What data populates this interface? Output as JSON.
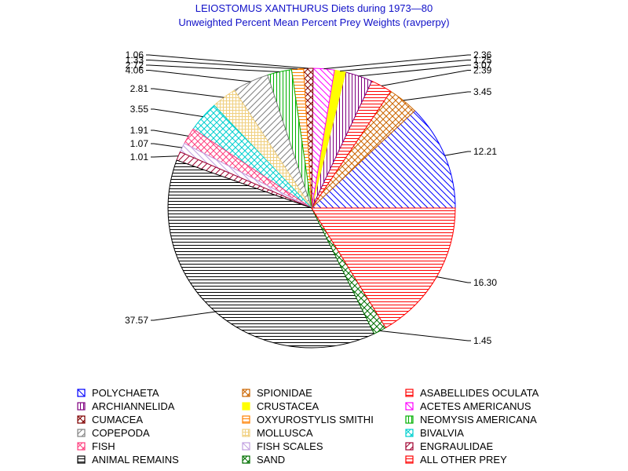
{
  "chart_data": {
    "type": "pie",
    "title": "LEIOSTOMUS XANTHURUS Diets during 1973—80",
    "subtitle": "Unweighted Percent Mean Percent Prey  Weights (ravperpy)",
    "slices": [
      {
        "name": "POLYCHAETA",
        "value": 12.21,
        "label": "12.21",
        "color": "#0000ff",
        "pattern": "diag-down",
        "label_side": "right"
      },
      {
        "name": "SPIONIDAE",
        "value": 3.45,
        "label": "3.45",
        "color": "#cc6600",
        "pattern": "crosshatch",
        "label_side": "right"
      },
      {
        "name": "ASABELLIDES OCULATA",
        "value": 2.39,
        "label": "2.39",
        "color": "#ff0000",
        "pattern": "horizontal",
        "label_side": "right"
      },
      {
        "name": "ARCHIANNELIDA",
        "value": 3.07,
        "label": "3.07",
        "color": "#800080",
        "pattern": "vertical",
        "label_side": "right"
      },
      {
        "name": "CRUSTACEA",
        "value": 1.25,
        "label": "1.25",
        "color": "#ffff00",
        "pattern": "solid",
        "label_side": "right"
      },
      {
        "name": "ACETES AMERICANUS",
        "value": 2.36,
        "label": "2.36",
        "color": "#ff00ff",
        "pattern": "diag-down",
        "label_side": "right"
      },
      {
        "name": "CUMACEA",
        "value": 1.06,
        "label": "1.06",
        "color": "#800000",
        "pattern": "crosshatch",
        "label_side": "left"
      },
      {
        "name": "OXYUROSTYLIS SMITHI",
        "value": 1.33,
        "label": "1.33",
        "color": "#ff8000",
        "pattern": "horizontal",
        "label_side": "left"
      },
      {
        "name": "NEOMYSIS AMERICANA",
        "value": 2.72,
        "label": "2.72",
        "color": "#00b000",
        "pattern": "vertical",
        "label_side": "left"
      },
      {
        "name": "COPEPODA",
        "value": 4.06,
        "label": "4.06",
        "color": "#808080",
        "pattern": "diag-up",
        "label_side": "left"
      },
      {
        "name": "MOLLUSCA",
        "value": 2.81,
        "label": "2.81",
        "color": "#f0d080",
        "pattern": "grid",
        "label_side": "left"
      },
      {
        "name": "BIVALVIA",
        "value": 3.55,
        "label": "3.55",
        "color": "#00d0d0",
        "pattern": "crosshatch",
        "label_side": "left"
      },
      {
        "name": "FISH",
        "value": 1.91,
        "label": "1.91",
        "color": "#ff4080",
        "pattern": "crosshatch",
        "label_side": "left"
      },
      {
        "name": "FISH SCALES",
        "value": 1.07,
        "label": "1.07",
        "color": "#c0a0e0",
        "pattern": "diag-down",
        "label_side": "left"
      },
      {
        "name": "ENGRAULIDAE",
        "value": 1.01,
        "label": "1.01",
        "color": "#a00030",
        "pattern": "diag-up",
        "label_side": "left"
      },
      {
        "name": "ANIMAL REMAINS",
        "value": 37.57,
        "label": "37.57",
        "color": "#000000",
        "pattern": "horizontal",
        "label_side": "left"
      },
      {
        "name": "SAND",
        "value": 1.45,
        "label": "1.45",
        "color": "#007000",
        "pattern": "crosshatch",
        "label_side": "right"
      },
      {
        "name": "ALL OTHER PREY",
        "value": 16.3,
        "label": "16.30",
        "color": "#ff0000",
        "pattern": "horizontal",
        "label_side": "right"
      }
    ],
    "legend": [
      {
        "label": "POLYCHAETA",
        "color": "#0000ff",
        "pattern": "diag-down"
      },
      {
        "label": "SPIONIDAE",
        "color": "#cc6600",
        "pattern": "crosshatch"
      },
      {
        "label": "ASABELLIDES OCULATA",
        "color": "#ff0000",
        "pattern": "horizontal"
      },
      {
        "label": "ARCHIANNELIDA",
        "color": "#800080",
        "pattern": "vertical"
      },
      {
        "label": "CRUSTACEA",
        "color": "#ffff00",
        "pattern": "solid"
      },
      {
        "label": "ACETES AMERICANUS",
        "color": "#ff00ff",
        "pattern": "diag-down"
      },
      {
        "label": "CUMACEA",
        "color": "#800000",
        "pattern": "crosshatch"
      },
      {
        "label": "OXYUROSTYLIS SMITHI",
        "color": "#ff8000",
        "pattern": "horizontal"
      },
      {
        "label": "NEOMYSIS AMERICANA",
        "color": "#00b000",
        "pattern": "vertical"
      },
      {
        "label": "COPEPODA",
        "color": "#808080",
        "pattern": "diag-up"
      },
      {
        "label": "MOLLUSCA",
        "color": "#f0d080",
        "pattern": "grid"
      },
      {
        "label": "BIVALVIA",
        "color": "#00d0d0",
        "pattern": "crosshatch"
      },
      {
        "label": "FISH",
        "color": "#ff4080",
        "pattern": "crosshatch"
      },
      {
        "label": "FISH SCALES",
        "color": "#c0a0e0",
        "pattern": "diag-down"
      },
      {
        "label": "ENGRAULIDAE",
        "color": "#a00030",
        "pattern": "diag-up"
      },
      {
        "label": "ANIMAL REMAINS",
        "color": "#000000",
        "pattern": "horizontal"
      },
      {
        "label": "SAND",
        "color": "#007000",
        "pattern": "crosshatch"
      },
      {
        "label": "ALL OTHER PREY",
        "color": "#ff0000",
        "pattern": "horizontal"
      }
    ],
    "legend_position": "bottom",
    "legend_columns": 3
  }
}
